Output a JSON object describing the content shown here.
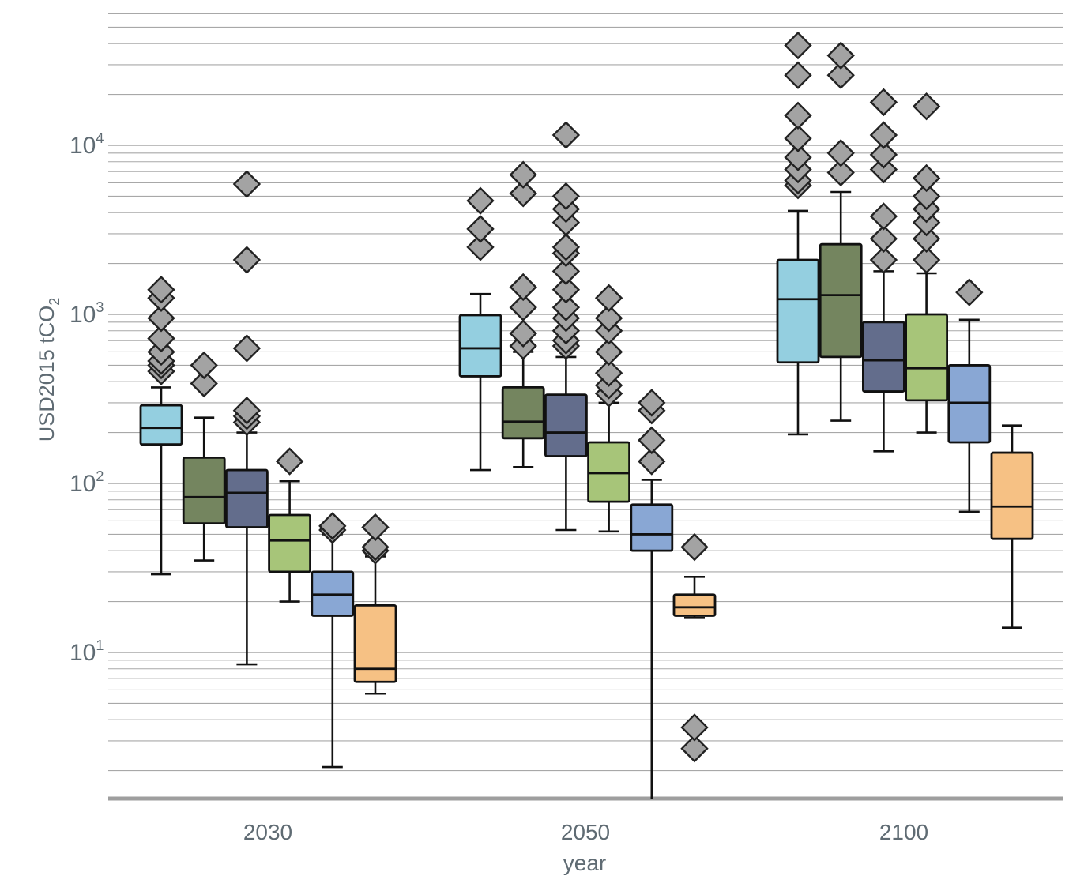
{
  "chart_data": {
    "type": "box",
    "xlabel": "year",
    "ylabel": "USD2015 tCO",
    "ylabel_subscript": "2",
    "yscale": "log",
    "ylim": [
      1.3,
      60000
    ],
    "yticks": [
      {
        "value": 10,
        "base": "10",
        "exp": "1"
      },
      {
        "value": 100,
        "base": "10",
        "exp": "2"
      },
      {
        "value": 1000,
        "base": "10",
        "exp": "3"
      },
      {
        "value": 10000,
        "base": "10",
        "exp": "4"
      }
    ],
    "grid": "horizontal, minor log gridlines",
    "categories": [
      "2030",
      "2050",
      "2100"
    ],
    "series_colors": [
      "#94cfe0",
      "#74855f",
      "#636d8c",
      "#a7c579",
      "#89a7d4",
      "#f6c184"
    ],
    "marker_color": "#a3a3a3",
    "groups": [
      {
        "category": "2030",
        "boxes": [
          {
            "whislo": 29,
            "q1": 170,
            "med": 213,
            "q3": 290,
            "whishi": 370,
            "fliers": [
              460,
              500,
              530,
              600,
              720,
              950,
              1250,
              1400
            ]
          },
          {
            "whislo": 35,
            "q1": 58,
            "med": 83,
            "q3": 142,
            "whishi": 245,
            "fliers": [
              390,
              500
            ]
          },
          {
            "whislo": 8.5,
            "q1": 55,
            "med": 88,
            "q3": 120,
            "whishi": 200,
            "fliers": [
              230,
              250,
              270,
              630,
              2100,
              5900
            ]
          },
          {
            "whislo": 20,
            "q1": 30,
            "med": 46,
            "q3": 65,
            "whishi": 103,
            "fliers": [
              135
            ]
          },
          {
            "whislo": 2.1,
            "q1": 16.5,
            "med": 22,
            "q3": 30,
            "whishi": 50,
            "fliers": [
              53,
              56
            ]
          },
          {
            "whislo": 5.7,
            "q1": 6.7,
            "med": 8,
            "q3": 19,
            "whishi": 37,
            "fliers": [
              40,
              42,
              55
            ]
          }
        ]
      },
      {
        "category": "2050",
        "boxes": [
          {
            "whislo": 120,
            "q1": 430,
            "med": 630,
            "q3": 990,
            "whishi": 1320,
            "fliers": [
              2500,
              3200,
              4700
            ]
          },
          {
            "whislo": 125,
            "q1": 185,
            "med": 232,
            "q3": 370,
            "whishi": 600,
            "fliers": [
              650,
              770,
              1100,
              1450,
              5200,
              6700
            ]
          },
          {
            "whislo": 53,
            "q1": 145,
            "med": 200,
            "q3": 335,
            "whishi": 560,
            "fliers": [
              650,
              700,
              800,
              950,
              1100,
              1400,
              1800,
              2300,
              2500,
              3500,
              4200,
              5000,
              11500
            ]
          },
          {
            "whislo": 52,
            "q1": 78,
            "med": 115,
            "q3": 175,
            "whishi": 300,
            "fliers": [
              340,
              380,
              450,
              600,
              800,
              950,
              1250
            ]
          },
          {
            "whislo": 1.3,
            "q1": 40,
            "med": 50,
            "q3": 75,
            "whishi": 105,
            "fliers": [
              135,
              180,
              270,
              300
            ]
          },
          {
            "whislo": 16,
            "q1": 16.5,
            "med": 18.5,
            "q3": 22,
            "whishi": 28,
            "fliers": [
              2.7,
              3.6,
              42
            ]
          }
        ]
      },
      {
        "category": "2100",
        "boxes": [
          {
            "whislo": 195,
            "q1": 520,
            "med": 1230,
            "q3": 2100,
            "whishi": 4100,
            "fliers": [
              5800,
              6200,
              7200,
              8500,
              11000,
              15000,
              26000,
              39000
            ]
          },
          {
            "whislo": 235,
            "q1": 560,
            "med": 1300,
            "q3": 2600,
            "whishi": 5300,
            "fliers": [
              6900,
              9000,
              26000,
              34000
            ]
          },
          {
            "whislo": 155,
            "q1": 350,
            "med": 535,
            "q3": 900,
            "whishi": 1800,
            "fliers": [
              2100,
              2800,
              3800,
              7200,
              8800,
              11500,
              18000
            ]
          },
          {
            "whislo": 200,
            "q1": 310,
            "med": 480,
            "q3": 1000,
            "whishi": 1750,
            "fliers": [
              2100,
              2800,
              3500,
              4200,
              5000,
              6400,
              17000
            ]
          },
          {
            "whislo": 68,
            "q1": 175,
            "med": 300,
            "q3": 500,
            "whishi": 930,
            "fliers": [
              1350
            ]
          },
          {
            "whislo": 14,
            "q1": 47,
            "med": 73,
            "q3": 152,
            "whishi": 220,
            "fliers": []
          }
        ]
      }
    ]
  }
}
